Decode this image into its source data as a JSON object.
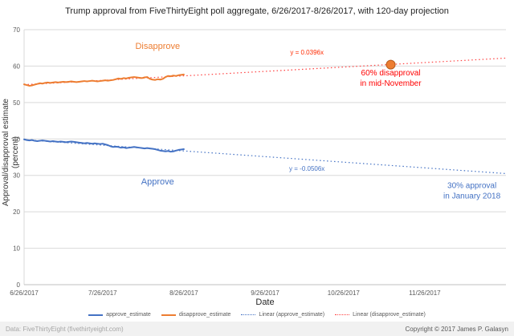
{
  "footer": {
    "left": "Data: FiveThirtyEight (fivethirtyeight.com)",
    "right": "Copyright © 2017 James P. Galasyn"
  },
  "chart_data": {
    "type": "line",
    "title": "Trump approval from FiveThirtyEight poll aggregate, 6/26/2017-8/26/2017, with 120-day projection",
    "xlabel": "Date",
    "ylabel": "Approval/disapproval estimate (percent)",
    "ylim": [
      0,
      70
    ],
    "yticks": [
      0,
      10,
      20,
      30,
      40,
      50,
      60,
      70
    ],
    "xlim_days": [
      0,
      184
    ],
    "xticks": [
      {
        "day": 0,
        "label": "6/26/2017"
      },
      {
        "day": 30,
        "label": "7/26/2017"
      },
      {
        "day": 61,
        "label": "8/26/2017"
      },
      {
        "day": 92,
        "label": "9/26/2017"
      },
      {
        "day": 122,
        "label": "10/26/2017"
      },
      {
        "day": 153,
        "label": "11/26/2017"
      }
    ],
    "grid": "horizontal",
    "legend_position": "bottom",
    "series": [
      {
        "name": "approve_estimate",
        "color": "#4472c4",
        "style": "solid",
        "day0": 0,
        "step": 1,
        "values": [
          39.9,
          39.7,
          39.6,
          39.7,
          39.5,
          39.4,
          39.5,
          39.6,
          39.5,
          39.4,
          39.3,
          39.4,
          39.3,
          39.2,
          39.3,
          39.2,
          39.1,
          39.2,
          39.3,
          39.2,
          39.1,
          39.0,
          38.9,
          38.8,
          38.9,
          38.8,
          38.7,
          38.8,
          38.7,
          38.6,
          38.7,
          38.5,
          38.3,
          38.0,
          37.8,
          37.9,
          37.8,
          37.6,
          37.7,
          37.5,
          37.6,
          37.7,
          37.8,
          37.7,
          37.6,
          37.5,
          37.4,
          37.5,
          37.4,
          37.3,
          37.2,
          37.0,
          36.8,
          36.7,
          36.6,
          36.7,
          36.5,
          36.6,
          36.8,
          37.0,
          37.1,
          37.2
        ]
      },
      {
        "name": "disapprove_estimate",
        "color": "#ed7d31",
        "style": "solid",
        "day0": 0,
        "step": 1,
        "values": [
          55.0,
          54.8,
          54.6,
          54.7,
          54.9,
          55.1,
          55.3,
          55.2,
          55.4,
          55.5,
          55.4,
          55.5,
          55.6,
          55.5,
          55.6,
          55.7,
          55.6,
          55.7,
          55.8,
          55.7,
          55.6,
          55.7,
          55.8,
          55.9,
          55.8,
          55.9,
          56.0,
          55.9,
          55.8,
          55.9,
          56.0,
          56.1,
          56.0,
          56.1,
          56.2,
          56.4,
          56.6,
          56.5,
          56.7,
          56.6,
          56.8,
          56.9,
          57.0,
          56.9,
          56.8,
          56.7,
          56.9,
          57.0,
          56.5,
          56.3,
          56.2,
          56.4,
          56.3,
          56.5,
          57.0,
          57.3,
          57.2,
          57.4,
          57.3,
          57.5,
          57.6,
          57.7
        ]
      }
    ],
    "trendlines": [
      {
        "name": "Linear (approve_estimate)",
        "color": "#4472c4",
        "style": "dotted",
        "equation": "y = -0.0506x",
        "start_day": 0,
        "end_day": 184,
        "start_value": 39.8,
        "end_value": 30.5
      },
      {
        "name": "Linear (disapprove_estimate)",
        "color": "#ff4040",
        "style": "dotted",
        "equation": "y = 0.0396x",
        "start_day": 0,
        "end_day": 184,
        "start_value": 54.9,
        "end_value": 62.2
      }
    ],
    "point_marker": {
      "day": 140,
      "value": 60.4,
      "color": "#ed7d31",
      "outline": "#b85c1e"
    },
    "annotations": [
      {
        "text": "Disapprove",
        "color": "#ed7d31",
        "day": 51,
        "value": 64.7,
        "size": 11
      },
      {
        "text": "Approve",
        "color": "#4472c4",
        "day": 51,
        "value": 27.5,
        "size": 11
      },
      {
        "text": "y = 0.0396x",
        "color": "#ff2a00",
        "day": 108,
        "value": 63.2,
        "size": 8
      },
      {
        "text": "y = -0.0506x",
        "color": "#4472c4",
        "day": 108,
        "value": 31.3,
        "size": 8
      },
      {
        "lines": [
          "60% disapproval",
          "in mid-November"
        ],
        "color": "#ff0000",
        "day": 140,
        "value": 57.5,
        "size": 10
      },
      {
        "lines": [
          "30% approval",
          "in January 2018"
        ],
        "color": "#4472c4",
        "day": 171,
        "value": 26.5,
        "size": 10
      }
    ],
    "legend": [
      {
        "label": "approve_estimate",
        "color": "#4472c4",
        "style": "solid"
      },
      {
        "label": "disapprove_estimate",
        "color": "#ed7d31",
        "style": "solid"
      },
      {
        "label": "Linear (approve_estimate)",
        "color": "#4472c4",
        "style": "dotted"
      },
      {
        "label": "Linear (disapprove_estimate)",
        "color": "#ff4040",
        "style": "dotted"
      }
    ]
  }
}
